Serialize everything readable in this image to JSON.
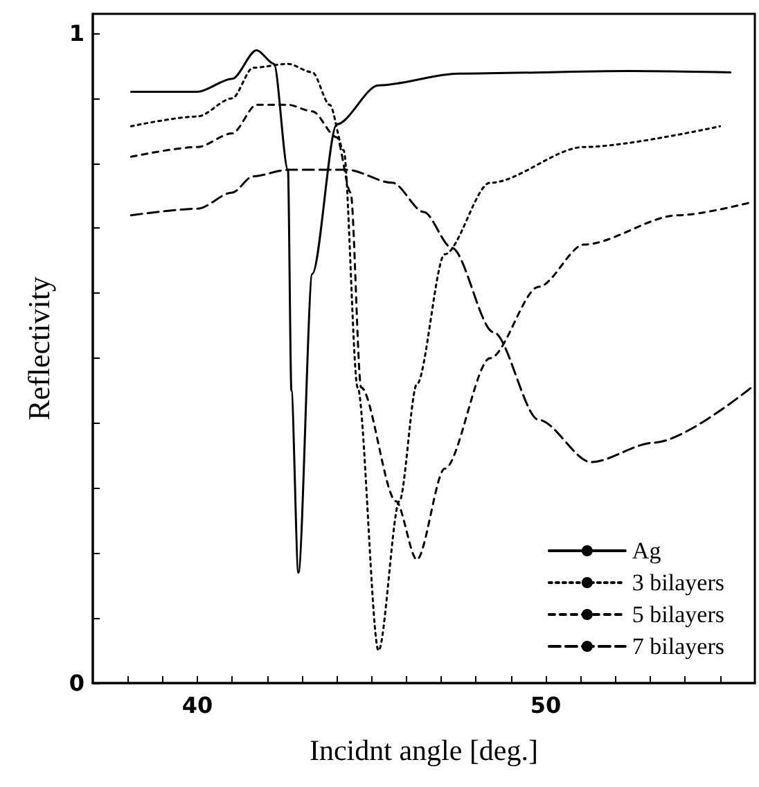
{
  "chart_data": {
    "type": "line",
    "xlabel": "Incidnt angle [deg.]",
    "ylabel": "Reflectivity",
    "xlim": [
      37,
      56
    ],
    "xticks": [
      {
        "value": 38,
        "label": null
      },
      {
        "value": 39,
        "label": null
      },
      40,
      {
        "value": 41,
        "label": null
      },
      {
        "value": 42,
        "label": null
      },
      {
        "value": 43,
        "label": null
      },
      {
        "value": 44,
        "label": null
      },
      {
        "value": 45,
        "label": null
      },
      {
        "value": 46,
        "label": null
      },
      {
        "value": 47,
        "label": null
      },
      {
        "value": 48,
        "label": null
      },
      {
        "value": 49,
        "label": null
      },
      50,
      {
        "value": 51,
        "label": null
      },
      {
        "value": 52,
        "label": null
      },
      {
        "value": 53,
        "label": null
      },
      {
        "value": 54,
        "label": null
      },
      {
        "value": 55,
        "label": null
      }
    ],
    "ylim": [
      0,
      1.03
    ],
    "yticks": [
      0,
      {
        "value": 0.1,
        "label": null
      },
      {
        "value": 0.2,
        "label": null
      },
      {
        "value": 0.3,
        "label": null
      },
      {
        "value": 0.4,
        "label": null
      },
      {
        "value": 0.5,
        "label": null
      },
      {
        "value": 0.6,
        "label": null
      },
      {
        "value": 0.7,
        "label": null
      },
      {
        "value": 0.8,
        "label": null
      },
      {
        "value": 0.9,
        "label": null
      },
      1
    ],
    "grid": false,
    "legend": "bottom right",
    "marker": "none",
    "series": [
      {
        "name": "Ag",
        "color": "#000000",
        "line_style": "solid",
        "x": [
          38.1,
          40.0,
          41.0,
          41.7,
          42.2,
          42.6,
          42.7,
          42.9,
          43.3,
          44.0,
          45.2,
          47.5,
          52.4,
          55.3
        ],
        "values": [
          0.91,
          0.91,
          0.93,
          0.974,
          0.953,
          0.79,
          0.45,
          0.17,
          0.63,
          0.86,
          0.92,
          0.938,
          0.942,
          0.94
        ]
      },
      {
        "name": "3 bilayers",
        "color": "#000000",
        "line_style": "dotted",
        "x": [
          38.1,
          40.0,
          41.0,
          41.6,
          42.6,
          43.3,
          43.8,
          44.2,
          44.6,
          45.2,
          45.8,
          46.3,
          47.1,
          48.4,
          51.1,
          55.0
        ],
        "values": [
          0.857,
          0.872,
          0.9,
          0.947,
          0.953,
          0.94,
          0.89,
          0.82,
          0.455,
          0.05,
          0.28,
          0.46,
          0.66,
          0.77,
          0.825,
          0.857
        ]
      },
      {
        "name": "5 bilayers",
        "color": "#000000",
        "line_style": "dashed",
        "x": [
          38.1,
          40.0,
          41.0,
          41.7,
          42.6,
          43.3,
          44.0,
          44.4,
          44.7,
          45.7,
          46.3,
          47.1,
          48.4,
          49.8,
          51.1,
          53.8,
          55.9
        ],
        "values": [
          0.81,
          0.825,
          0.846,
          0.89,
          0.89,
          0.88,
          0.84,
          0.755,
          0.455,
          0.28,
          0.19,
          0.33,
          0.5,
          0.61,
          0.675,
          0.72,
          0.74
        ]
      },
      {
        "name": "7 bilayers",
        "color": "#000000",
        "line_style": "dashed",
        "x": [
          38.1,
          40.0,
          41.0,
          41.6,
          42.6,
          44.3,
          45.6,
          46.5,
          47.3,
          48.5,
          49.8,
          51.3,
          53.1,
          55.9
        ],
        "values": [
          0.72,
          0.73,
          0.755,
          0.78,
          0.79,
          0.79,
          0.77,
          0.725,
          0.67,
          0.54,
          0.405,
          0.34,
          0.37,
          0.455
        ]
      }
    ]
  }
}
